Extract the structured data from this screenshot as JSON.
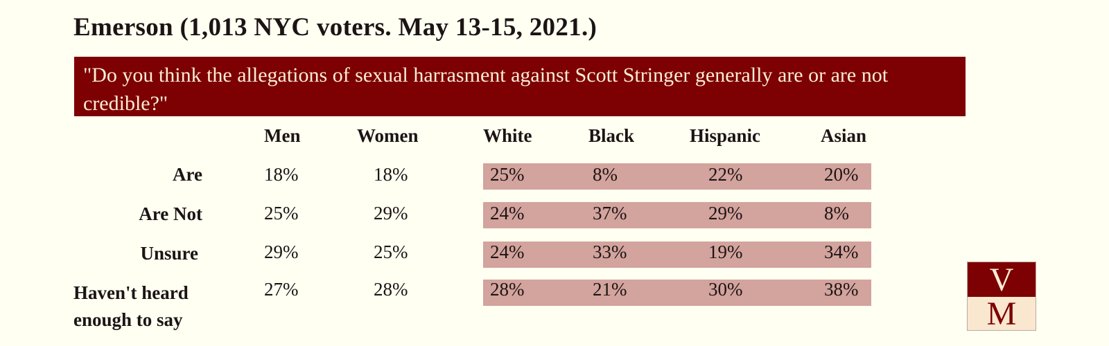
{
  "title": "Emerson (1,013 NYC voters. May 13-15, 2021.)",
  "question": "\"Do you think the allegations of sexual harrasment against Scott Stringer generally are or are not credible?\"",
  "colors": {
    "background": "#fffff2",
    "question_bg": "#7d0003",
    "question_text": "#fbeed6",
    "band": "#d3a39d"
  },
  "chart_data": {
    "type": "table",
    "columns": [
      "Men",
      "Women",
      "White",
      "Black",
      "Hispanic",
      "Asian"
    ],
    "rows": [
      {
        "label": "Are",
        "values": [
          "18%",
          "18%",
          "25%",
          "8%",
          "22%",
          "20%"
        ]
      },
      {
        "label": "Are Not",
        "values": [
          "25%",
          "29%",
          "24%",
          "37%",
          "29%",
          "8%"
        ]
      },
      {
        "label": "Unsure",
        "values": [
          "29%",
          "25%",
          "24%",
          "33%",
          "19%",
          "34%"
        ]
      },
      {
        "label": "Haven't heard enough to say",
        "values": [
          "27%",
          "28%",
          "28%",
          "21%",
          "30%",
          "38%"
        ]
      }
    ]
  },
  "logo": {
    "top": "V",
    "bottom": "M"
  }
}
